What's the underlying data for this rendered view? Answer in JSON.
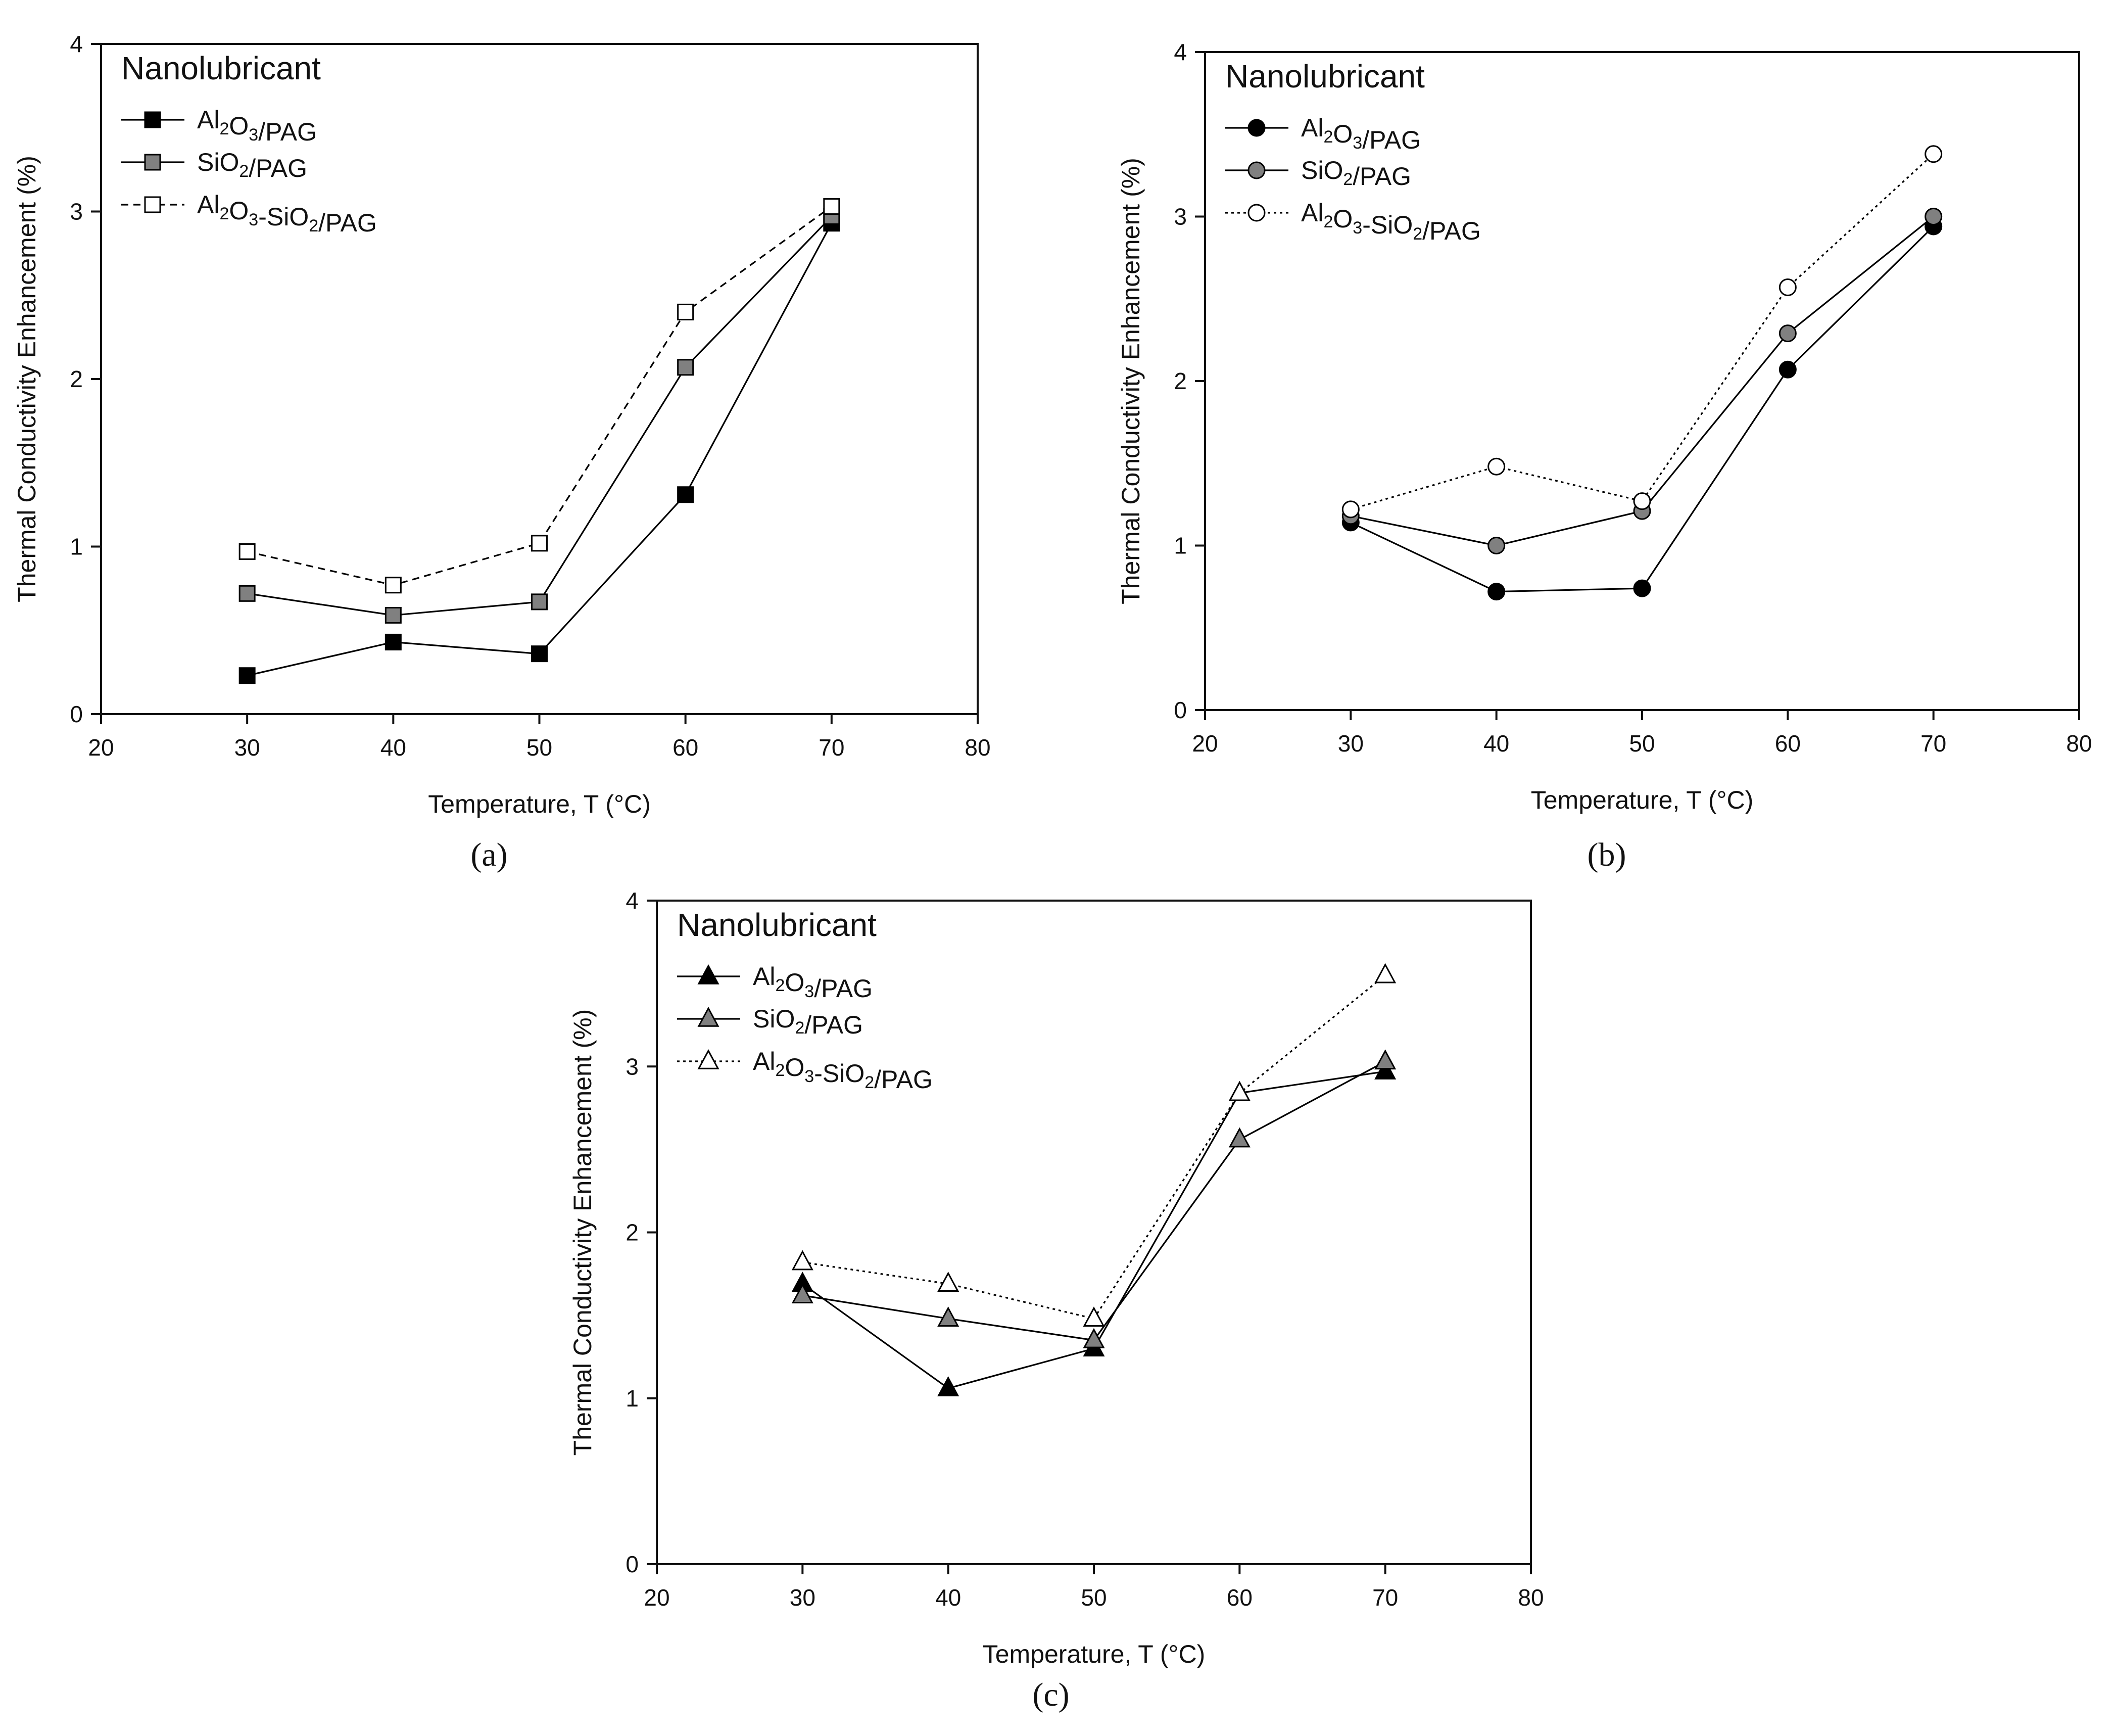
{
  "chart_data": [
    {
      "type": "line",
      "panel_label": "(a)",
      "xlabel": "Temperature, T (°C)",
      "ylabel": "Thermal Conductivity Enhancement (%)",
      "xlim": [
        20,
        80
      ],
      "ylim": [
        0,
        4
      ],
      "xticks": [
        20,
        30,
        40,
        50,
        60,
        70,
        80
      ],
      "yticks": [
        0,
        1,
        2,
        3,
        4
      ],
      "legend_title": "Nanolubricant",
      "legend_position": "top-left",
      "grid": false,
      "x": [
        30,
        40,
        50,
        60,
        70
      ],
      "series": [
        {
          "name": "Al2O3/PAG",
          "marker": "square",
          "fill": "#000000",
          "line_color": "#000000",
          "dash": "solid",
          "values": [
            0.23,
            0.43,
            0.36,
            1.31,
            2.93
          ]
        },
        {
          "name": "SiO2/PAG",
          "marker": "square",
          "fill": "#808080",
          "line_color": "#000000",
          "dash": "solid",
          "values": [
            0.72,
            0.59,
            0.67,
            2.07,
            2.97
          ]
        },
        {
          "name": "Al2O3-SiO2/PAG",
          "marker": "square",
          "fill": "#ffffff",
          "line_color": "#000000",
          "dash": "dashed",
          "values": [
            0.97,
            0.77,
            1.02,
            2.4,
            3.03
          ]
        }
      ]
    },
    {
      "type": "line",
      "panel_label": "(b)",
      "xlabel": "Temperature, T (°C)",
      "ylabel": "Thermal Conductivity Enhancement (%)",
      "xlim": [
        20,
        80
      ],
      "ylim": [
        0,
        4
      ],
      "xticks": [
        20,
        30,
        40,
        50,
        60,
        70,
        80
      ],
      "yticks": [
        0,
        1,
        2,
        3,
        4
      ],
      "legend_title": "Nanolubricant",
      "legend_position": "top-left",
      "grid": false,
      "x": [
        30,
        40,
        50,
        60,
        70
      ],
      "series": [
        {
          "name": "Al2O3/PAG",
          "marker": "circle",
          "fill": "#000000",
          "line_color": "#000000",
          "dash": "solid",
          "values": [
            1.14,
            0.72,
            0.74,
            2.07,
            2.94
          ]
        },
        {
          "name": "SiO2/PAG",
          "marker": "circle",
          "fill": "#808080",
          "line_color": "#000000",
          "dash": "solid",
          "values": [
            1.18,
            1.0,
            1.21,
            2.29,
            3.0
          ]
        },
        {
          "name": "Al2O3-SiO2/PAG",
          "marker": "circle",
          "fill": "#ffffff",
          "line_color": "#000000",
          "dash": "dotted",
          "values": [
            1.22,
            1.48,
            1.27,
            2.57,
            3.38
          ]
        }
      ]
    },
    {
      "type": "line",
      "panel_label": "(c)",
      "xlabel": "Temperature, T (°C)",
      "ylabel": "Thermal Conductivity Enhancement (%)",
      "xlim": [
        20,
        80
      ],
      "ylim": [
        0,
        4
      ],
      "xticks": [
        20,
        30,
        40,
        50,
        60,
        70,
        80
      ],
      "yticks": [
        0,
        1,
        2,
        3,
        4
      ],
      "legend_title": "Nanolubricant",
      "legend_position": "top-left",
      "grid": false,
      "x": [
        30,
        40,
        50,
        60,
        70
      ],
      "series": [
        {
          "name": "Al2O3/PAG",
          "marker": "triangle",
          "fill": "#000000",
          "line_color": "#000000",
          "dash": "solid",
          "values": [
            1.69,
            1.06,
            1.3,
            2.84,
            2.97
          ]
        },
        {
          "name": "SiO2/PAG",
          "marker": "triangle",
          "fill": "#808080",
          "line_color": "#000000",
          "dash": "solid",
          "values": [
            1.62,
            1.48,
            1.35,
            2.56,
            3.03
          ]
        },
        {
          "name": "Al2O3-SiO2/PAG",
          "marker": "triangle",
          "fill": "#ffffff",
          "line_color": "#000000",
          "dash": "dotted",
          "values": [
            1.82,
            1.69,
            1.48,
            2.84,
            3.55
          ]
        }
      ]
    }
  ]
}
